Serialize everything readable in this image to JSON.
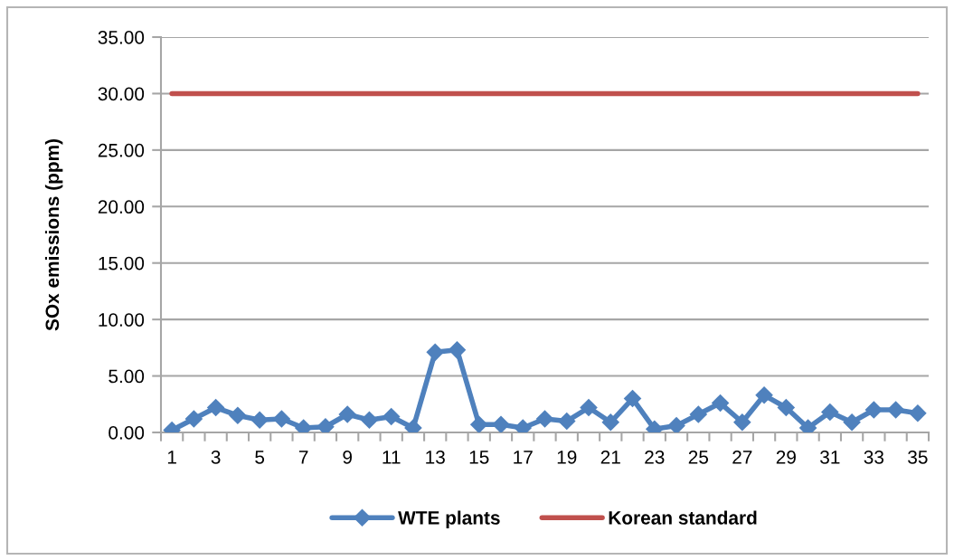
{
  "chart_data": {
    "type": "line",
    "ylabel": "SOx emissions (ppm)",
    "categories": [
      "1",
      null,
      "3",
      null,
      "5",
      null,
      "7",
      null,
      "9",
      null,
      "11",
      null,
      "13",
      null,
      "15",
      null,
      "17",
      null,
      "19",
      null,
      "21",
      null,
      "23",
      null,
      "25",
      null,
      "27",
      null,
      "29",
      null,
      "31",
      null,
      "33",
      null,
      "35"
    ],
    "series": [
      {
        "name": "WTE plants",
        "color": "#4f81bd",
        "marker": "diamond",
        "values": [
          0.2,
          1.2,
          2.2,
          1.5,
          1.1,
          1.2,
          0.4,
          0.5,
          1.6,
          1.1,
          1.4,
          0.4,
          7.1,
          7.3,
          0.7,
          0.7,
          0.4,
          1.2,
          1.0,
          2.2,
          0.9,
          3.0,
          0.3,
          0.6,
          1.6,
          2.6,
          0.9,
          3.3,
          2.2,
          0.4,
          1.8,
          0.9,
          2.0,
          2.0,
          1.7
        ]
      },
      {
        "name": "Korean standard",
        "color": "#c0504d",
        "marker": "none",
        "values": [
          30,
          30,
          30,
          30,
          30,
          30,
          30,
          30,
          30,
          30,
          30,
          30,
          30,
          30,
          30,
          30,
          30,
          30,
          30,
          30,
          30,
          30,
          30,
          30,
          30,
          30,
          30,
          30,
          30,
          30,
          30,
          30,
          30,
          30,
          30
        ]
      }
    ],
    "ylim": [
      0,
      35
    ],
    "yticks": [
      {
        "value": 0,
        "label": "0.00"
      },
      {
        "value": 5,
        "label": "5.00"
      },
      {
        "value": 10,
        "label": "10.00"
      },
      {
        "value": 15,
        "label": "15.00"
      },
      {
        "value": 20,
        "label": "20.00"
      },
      {
        "value": 25,
        "label": "25.00"
      },
      {
        "value": 30,
        "label": "30.00"
      },
      {
        "value": 35,
        "label": "35.00"
      }
    ],
    "grid": "y",
    "legend": "bottom"
  }
}
